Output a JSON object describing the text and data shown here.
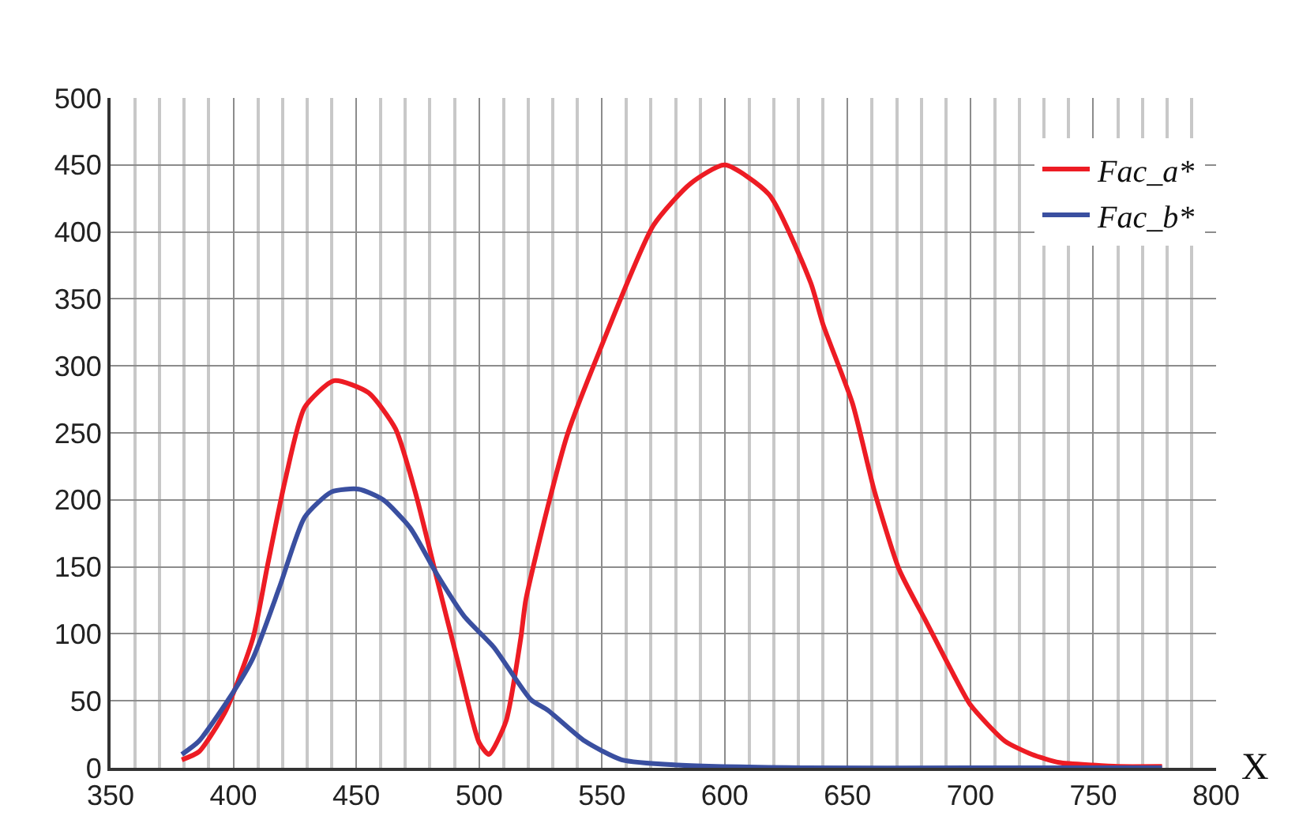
{
  "chart_data": {
    "type": "line",
    "xlabel": "X",
    "xlim": [
      350,
      800
    ],
    "ylim": [
      0,
      500
    ],
    "xticks": [
      350,
      {
        "value": 360,
        "label": null
      },
      {
        "value": 370,
        "label": null
      },
      {
        "value": 380,
        "label": null
      },
      {
        "value": 390,
        "label": null
      },
      400,
      {
        "value": 410,
        "label": null
      },
      {
        "value": 420,
        "label": null
      },
      {
        "value": 430,
        "label": null
      },
      {
        "value": 440,
        "label": null
      },
      450,
      {
        "value": 460,
        "label": null
      },
      {
        "value": 470,
        "label": null
      },
      {
        "value": 480,
        "label": null
      },
      {
        "value": 490,
        "label": null
      },
      500,
      {
        "value": 510,
        "label": null
      },
      {
        "value": 520,
        "label": null
      },
      {
        "value": 530,
        "label": null
      },
      {
        "value": 540,
        "label": null
      },
      550,
      {
        "value": 560,
        "label": null
      },
      {
        "value": 570,
        "label": null
      },
      {
        "value": 580,
        "label": null
      },
      {
        "value": 590,
        "label": null
      },
      600,
      {
        "value": 610,
        "label": null
      },
      {
        "value": 620,
        "label": null
      },
      {
        "value": 630,
        "label": null
      },
      {
        "value": 640,
        "label": null
      },
      650,
      {
        "value": 660,
        "label": null
      },
      {
        "value": 670,
        "label": null
      },
      {
        "value": 680,
        "label": null
      },
      {
        "value": 690,
        "label": null
      },
      700,
      {
        "value": 710,
        "label": null
      },
      {
        "value": 720,
        "label": null
      },
      {
        "value": 730,
        "label": null
      },
      {
        "value": 740,
        "label": null
      },
      750,
      {
        "value": 760,
        "label": null
      },
      {
        "value": 770,
        "label": null
      },
      {
        "value": 780,
        "label": null
      },
      {
        "value": 790,
        "label": null
      },
      800
    ],
    "yticks": [
      0,
      50,
      100,
      150,
      200,
      250,
      300,
      350,
      400,
      450,
      500
    ],
    "grid": true,
    "legend": "top right",
    "marker": "none",
    "line_style": "solid",
    "series": [
      {
        "name": "Fac_a*",
        "color": "#ed1c24",
        "x": [
          379,
          386,
          397,
          408,
          414,
          421,
          429,
          441,
          455,
          466,
          474,
          483,
          491,
          500,
          504,
          511,
          517,
          519,
          528,
          536,
          549,
          571,
          586,
          600,
          618,
          635,
          640,
          652,
          661,
          671,
          682,
          693,
          700,
          714,
          725,
          736,
          750,
          760,
          778
        ],
        "values": [
          6,
          12,
          43,
          97,
          152,
          214,
          269,
          289,
          280,
          253,
          206,
          140,
          82,
          19,
          10,
          35,
          97,
          125,
          195,
          249,
          311,
          405,
          436,
          450,
          428,
          362,
          331,
          272,
          206,
          148,
          109,
          70,
          47,
          20,
          10,
          4,
          2,
          1,
          1
        ]
      },
      {
        "name": "Fac_b*",
        "color": "#3a4fa0",
        "x": [
          379,
          386,
          398,
          408,
          419,
          429,
          440,
          451,
          461,
          472,
          483,
          494,
          506,
          521,
          528,
          543,
          558,
          581,
          631,
          700,
          778
        ],
        "values": [
          10,
          20,
          51,
          82,
          136,
          187,
          206,
          208,
          200,
          179,
          144,
          113,
          90,
          51,
          43,
          20,
          6,
          2,
          0,
          0,
          0
        ]
      }
    ]
  }
}
